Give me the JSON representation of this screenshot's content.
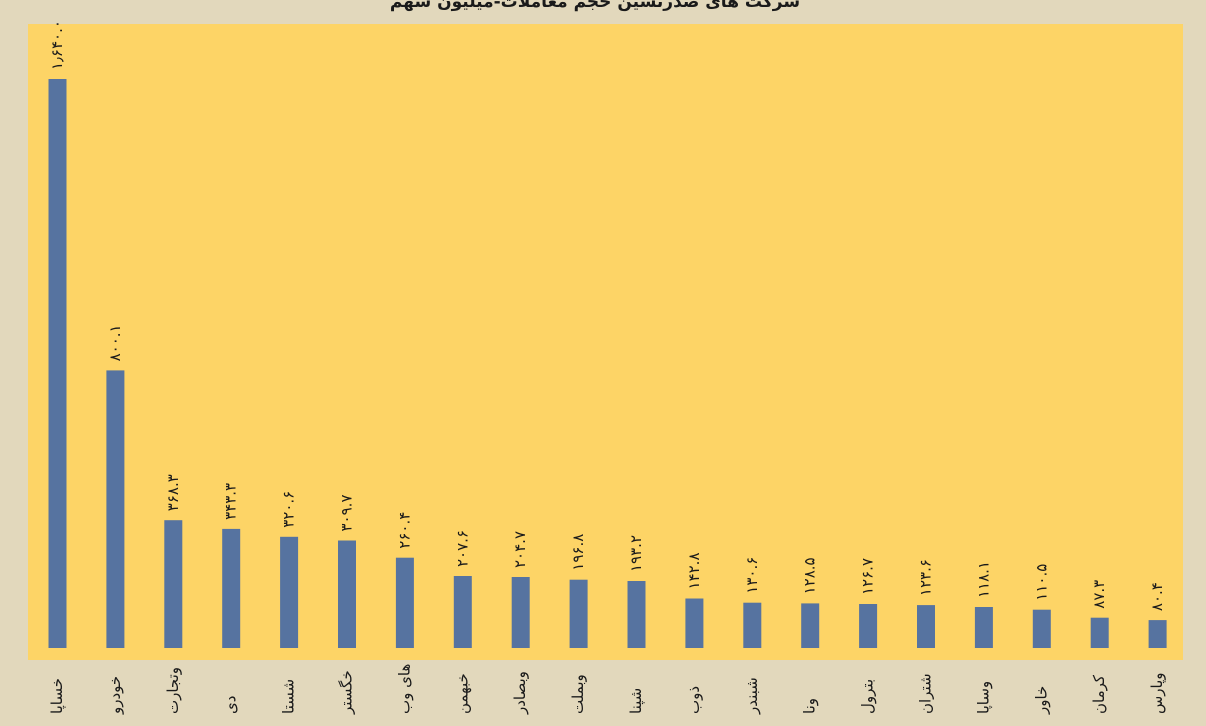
{
  "chart_data": {
    "type": "bar",
    "title": "شرکت های صدرنشین حجم معاملات-میلیون سهم",
    "categories": [
      "خساپا",
      "خودرو",
      "وتجارت",
      "دی",
      "شستا",
      "خگستر",
      "های وب",
      "خبهمن",
      "وبصادر",
      "وبملت",
      "شپنا",
      "ذوب",
      "شبندر",
      "ونا",
      "بترول",
      "شتران",
      "وساپا",
      "خاور",
      "کرمان",
      "وپارس"
    ],
    "values": [
      1640.0,
      800.1,
      368.3,
      343.3,
      320.6,
      309.7,
      260.4,
      207.6,
      204.7,
      196.8,
      193.2,
      142.8,
      130.6,
      128.5,
      126.7,
      123.6,
      118.1,
      110.5,
      87.3,
      80.4
    ],
    "value_labels": [
      "۱٫۶۴۰.۰",
      "۸۰۰.۱",
      "۳۶۸.۳",
      "۳۴۳.۳",
      "۳۲۰.۶",
      "۳۰۹.۷",
      "۲۶۰.۴",
      "۲۰۷.۶",
      "۲۰۴.۷",
      "۱۹۶.۸",
      "۱۹۳.۲",
      "۱۴۲.۸",
      "۱۳۰.۶",
      "۱۲۸.۵",
      "۱۲۶.۷",
      "۱۲۳.۶",
      "۱۱۸.۱",
      "۱۱۰.۵",
      "۸۷.۳",
      "۸۰.۴"
    ],
    "xlabel": "",
    "ylabel": "",
    "ylim": [
      0,
      1640
    ],
    "grid": false,
    "colors": {
      "bar": "#5673a0",
      "plot_background": "#fdd466",
      "page_background": "#e2d8bc",
      "text": "#1a1a1a"
    }
  }
}
